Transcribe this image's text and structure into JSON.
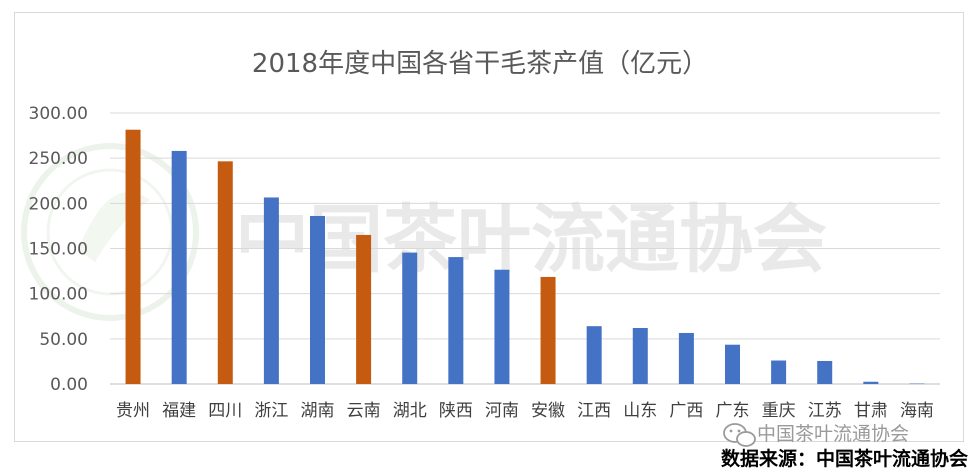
{
  "chart_data": {
    "type": "bar",
    "title": "2018年度中国各省干毛茶产值（亿元）",
    "categories": [
      "贵州",
      "福建",
      "四川",
      "浙江",
      "湖南",
      "云南",
      "湖北",
      "陕西",
      "河南",
      "安徽",
      "江西",
      "山东",
      "广西",
      "广东",
      "重庆",
      "江苏",
      "甘肃",
      "海南"
    ],
    "values": [
      281.5,
      258.0,
      246.5,
      206.5,
      186.0,
      165.0,
      145.5,
      140.5,
      126.5,
      118.5,
      64.0,
      62.0,
      56.5,
      43.5,
      26.0,
      25.5,
      2.5,
      0.5
    ],
    "bar_colors": [
      "#C55A11",
      "#4472C4",
      "#C55A11",
      "#4472C4",
      "#4472C4",
      "#C55A11",
      "#4472C4",
      "#4472C4",
      "#4472C4",
      "#C55A11",
      "#4472C4",
      "#4472C4",
      "#4472C4",
      "#4472C4",
      "#4472C4",
      "#4472C4",
      "#4472C4",
      "#4472C4"
    ],
    "ylim": [
      0,
      300
    ],
    "yticks": [
      "0.00",
      "50.00",
      "100.00",
      "150.00",
      "200.00",
      "250.00",
      "300.00"
    ],
    "grid": true,
    "legend": "none",
    "xlabel": "",
    "ylabel": ""
  },
  "watermark": {
    "text": "中国茶叶流通协会",
    "logo_icon": "tea-association-logo-icon"
  },
  "footer": {
    "wechat_icon": "wechat-icon",
    "wechat_account": "中国茶叶流通协会",
    "source": "数据来源：中国茶叶流通协会"
  }
}
